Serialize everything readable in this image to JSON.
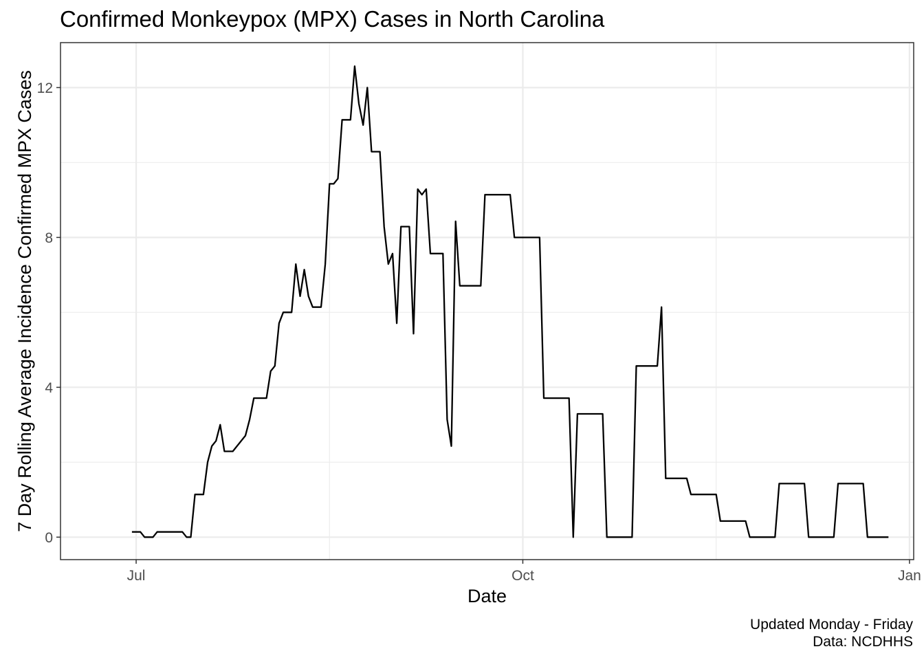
{
  "chart_data": {
    "type": "line",
    "title": "Confirmed Monkeypox (MPX) Cases in North Carolina",
    "xlabel": "Date",
    "ylabel": "7 Day Rolling Average Incidence Confirmed MPX Cases",
    "caption": [
      "Updated Monday - Friday",
      "Data: NCDHHS"
    ],
    "grid": true,
    "xlim": [
      "2022-06-13",
      "2023-01-02"
    ],
    "ylim": [
      -0.6,
      13.2
    ],
    "x_ticks": [
      {
        "date": "2022-07-01",
        "label": "Jul"
      },
      {
        "date": "2022-10-01",
        "label": "Oct"
      },
      {
        "date": "2023-01-01",
        "label": "Jan"
      }
    ],
    "x_minor_ticks": [
      "2022-08-16",
      "2022-11-16"
    ],
    "y_ticks": [
      0,
      4,
      8,
      12
    ],
    "y_minor_ticks": [
      2,
      6,
      10
    ],
    "series": [
      {
        "points": [
          [
            "2022-06-30",
            0.14
          ],
          [
            "2022-07-02",
            0.14
          ],
          [
            "2022-07-03",
            0
          ],
          [
            "2022-07-05",
            0
          ],
          [
            "2022-07-06",
            0.14
          ],
          [
            "2022-07-12",
            0.14
          ],
          [
            "2022-07-13",
            0
          ],
          [
            "2022-07-14",
            0
          ],
          [
            "2022-07-15",
            1.14
          ],
          [
            "2022-07-17",
            1.14
          ],
          [
            "2022-07-18",
            2.0
          ],
          [
            "2022-07-19",
            2.43
          ],
          [
            "2022-07-20",
            2.57
          ],
          [
            "2022-07-21",
            3.0
          ],
          [
            "2022-07-22",
            2.29
          ],
          [
            "2022-07-24",
            2.29
          ],
          [
            "2022-07-27",
            2.71
          ],
          [
            "2022-07-28",
            3.14
          ],
          [
            "2022-07-29",
            3.71
          ],
          [
            "2022-08-01",
            3.71
          ],
          [
            "2022-08-02",
            4.43
          ],
          [
            "2022-08-03",
            4.57
          ],
          [
            "2022-08-04",
            5.71
          ],
          [
            "2022-08-05",
            6.0
          ],
          [
            "2022-08-07",
            6.0
          ],
          [
            "2022-08-08",
            7.29
          ],
          [
            "2022-08-09",
            6.43
          ],
          [
            "2022-08-10",
            7.14
          ],
          [
            "2022-08-11",
            6.43
          ],
          [
            "2022-08-12",
            6.14
          ],
          [
            "2022-08-14",
            6.14
          ],
          [
            "2022-08-15",
            7.29
          ],
          [
            "2022-08-16",
            9.43
          ],
          [
            "2022-08-17",
            9.43
          ],
          [
            "2022-08-18",
            9.57
          ],
          [
            "2022-08-19",
            11.14
          ],
          [
            "2022-08-21",
            11.14
          ],
          [
            "2022-08-22",
            12.57
          ],
          [
            "2022-08-23",
            11.57
          ],
          [
            "2022-08-24",
            11.0
          ],
          [
            "2022-08-25",
            12.0
          ],
          [
            "2022-08-26",
            10.29
          ],
          [
            "2022-08-28",
            10.29
          ],
          [
            "2022-08-29",
            8.29
          ],
          [
            "2022-08-30",
            7.29
          ],
          [
            "2022-08-31",
            7.57
          ],
          [
            "2022-09-01",
            5.71
          ],
          [
            "2022-09-02",
            8.29
          ],
          [
            "2022-09-04",
            8.29
          ],
          [
            "2022-09-05",
            5.43
          ],
          [
            "2022-09-06",
            9.29
          ],
          [
            "2022-09-07",
            9.14
          ],
          [
            "2022-09-08",
            9.29
          ],
          [
            "2022-09-09",
            7.57
          ],
          [
            "2022-09-12",
            7.57
          ],
          [
            "2022-09-13",
            3.14
          ],
          [
            "2022-09-14",
            2.43
          ],
          [
            "2022-09-15",
            8.43
          ],
          [
            "2022-09-16",
            6.71
          ],
          [
            "2022-09-21",
            6.71
          ],
          [
            "2022-09-22",
            9.14
          ],
          [
            "2022-09-28",
            9.14
          ],
          [
            "2022-09-29",
            8.0
          ],
          [
            "2022-10-05",
            8.0
          ],
          [
            "2022-10-06",
            3.71
          ],
          [
            "2022-10-12",
            3.71
          ],
          [
            "2022-10-13",
            0
          ],
          [
            "2022-10-14",
            3.29
          ],
          [
            "2022-10-20",
            3.29
          ],
          [
            "2022-10-21",
            0
          ],
          [
            "2022-10-27",
            0
          ],
          [
            "2022-10-28",
            4.57
          ],
          [
            "2022-11-02",
            4.57
          ],
          [
            "2022-11-03",
            6.14
          ],
          [
            "2022-11-04",
            1.57
          ],
          [
            "2022-11-09",
            1.57
          ],
          [
            "2022-11-10",
            1.14
          ],
          [
            "2022-11-16",
            1.14
          ],
          [
            "2022-11-17",
            0.43
          ],
          [
            "2022-11-23",
            0.43
          ],
          [
            "2022-11-24",
            0
          ],
          [
            "2022-11-30",
            0
          ],
          [
            "2022-12-01",
            1.43
          ],
          [
            "2022-12-07",
            1.43
          ],
          [
            "2022-12-08",
            0
          ],
          [
            "2022-12-14",
            0
          ],
          [
            "2022-12-15",
            1.43
          ],
          [
            "2022-12-21",
            1.43
          ],
          [
            "2022-12-22",
            0
          ],
          [
            "2022-12-27",
            0
          ]
        ]
      }
    ]
  }
}
